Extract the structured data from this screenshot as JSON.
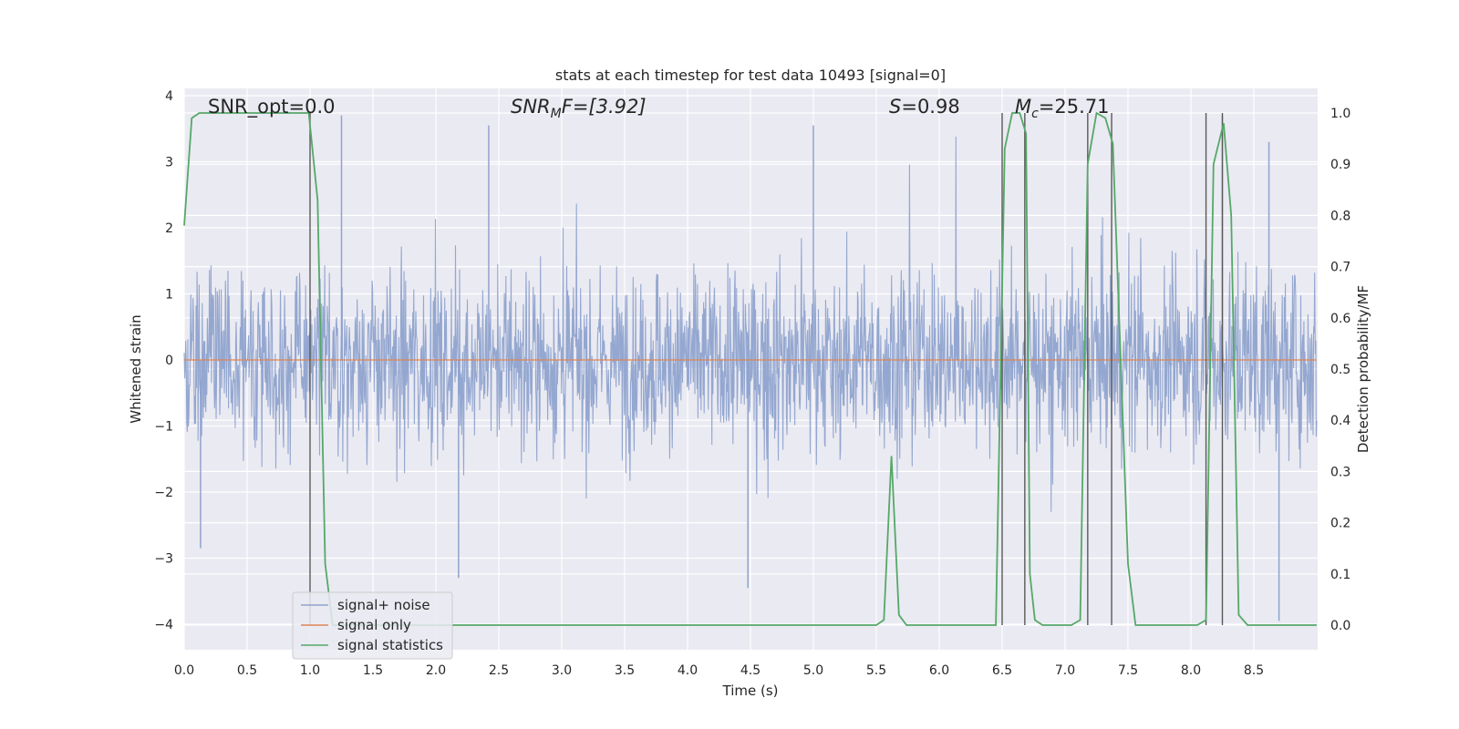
{
  "chart_data": {
    "type": "line",
    "title": "stats at each timestep for test data 10493 [signal=0]",
    "xlabel": "Time (s)",
    "ylabel": "Whitened strain",
    "y2label": "Detection probability/MF",
    "xlim": [
      0,
      9
    ],
    "ylim": [
      -4.4,
      4.1
    ],
    "y2lim": [
      -0.05,
      1.03
    ],
    "xticks": [
      "0.0",
      "0.5",
      "1.0",
      "1.5",
      "2.0",
      "2.5",
      "3.0",
      "3.5",
      "4.0",
      "4.5",
      "5.0",
      "5.5",
      "6.0",
      "6.5",
      "7.0",
      "7.5",
      "8.0",
      "8.5"
    ],
    "yticks": [
      "4",
      "3",
      "2",
      "1",
      "0",
      "−1",
      "−2",
      "−3",
      "−4"
    ],
    "y2ticks": [
      "1.0",
      "0.9",
      "0.8",
      "0.7",
      "0.6",
      "0.5",
      "0.4",
      "0.3",
      "0.2",
      "0.1",
      "0.0"
    ],
    "grid": true,
    "legend_position": "lower-left",
    "annotations": {
      "snr_opt": "SNR_opt=0.0",
      "snr_mf_sym": "SNR",
      "snr_mf_sub": "M",
      "snr_mf_rest": "F=[3.92]",
      "s_sym": "S",
      "s_rest": "=0.98",
      "mc_sym": "M",
      "mc_sub": "c",
      "mc_rest": "=25.71"
    },
    "series": [
      {
        "name": "signal+ noise",
        "color": "#8fa3cd",
        "kind": "noise",
        "envelope": {
          "upper_typical": 1.7,
          "lower_typical": -1.7,
          "peak_max": 3.75,
          "peak_min": -3.95
        },
        "notable_spikes": [
          {
            "x": 1.25,
            "y": 3.7
          },
          {
            "x": 2.42,
            "y": 3.55
          },
          {
            "x": 5.0,
            "y": 3.55
          },
          {
            "x": 8.25,
            "y": 3.7
          },
          {
            "x": 8.62,
            "y": 3.3
          },
          {
            "x": 4.48,
            "y": -3.45
          },
          {
            "x": 8.7,
            "y": -3.95
          },
          {
            "x": 0.13,
            "y": -2.85
          },
          {
            "x": 2.18,
            "y": -3.3
          }
        ]
      },
      {
        "name": "signal only",
        "color": "#dd8452",
        "x": [
          0,
          9
        ],
        "y": [
          0,
          0
        ]
      },
      {
        "name": "signal statistics",
        "color": "#55a868",
        "axis": "right",
        "x": [
          0,
          0.06,
          0.12,
          0.2,
          0.5,
          0.8,
          0.99,
          1.06,
          1.12,
          1.18,
          1.3,
          5.5,
          5.56,
          5.62,
          5.68,
          5.74,
          6.45,
          6.52,
          6.58,
          6.64,
          6.69,
          6.72,
          6.76,
          6.82,
          7.05,
          7.12,
          7.18,
          7.25,
          7.32,
          7.38,
          7.5,
          7.56,
          7.62,
          8.05,
          8.12,
          8.18,
          8.26,
          8.32,
          8.38,
          8.45,
          9.0
        ],
        "y": [
          0.78,
          0.99,
          1.0,
          1.0,
          1.0,
          1.0,
          1.0,
          0.83,
          0.12,
          0.0,
          0.0,
          0.0,
          0.01,
          0.33,
          0.02,
          0.0,
          0.0,
          0.93,
          1.0,
          1.0,
          0.96,
          0.1,
          0.01,
          0.0,
          0.0,
          0.01,
          0.9,
          1.0,
          0.99,
          0.94,
          0.12,
          0.0,
          0.0,
          0.0,
          0.01,
          0.9,
          0.98,
          0.8,
          0.02,
          0.0,
          0.0
        ]
      }
    ],
    "vertical_lines": {
      "color": "#595959",
      "x": [
        1.0,
        6.5,
        6.68,
        7.18,
        7.37,
        8.12,
        8.25
      ],
      "y2_top": 1.0
    }
  }
}
